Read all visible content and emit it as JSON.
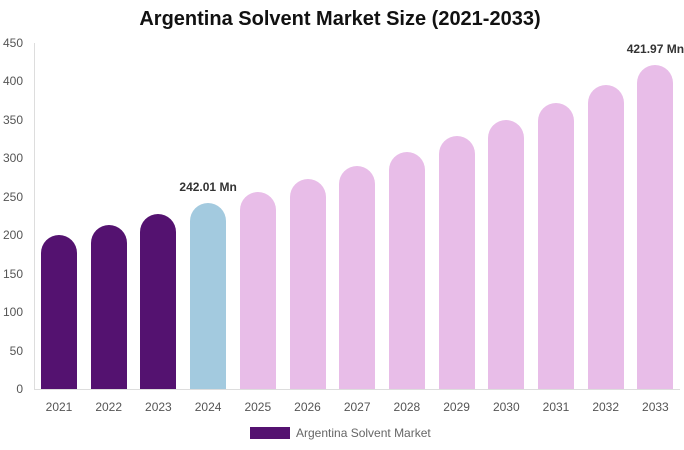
{
  "chart_data": {
    "type": "bar",
    "title": "Argentina Solvent Market Size (2021-2033)",
    "xlabel": "",
    "ylabel": "",
    "ylim": [
      0,
      450
    ],
    "yticks": [
      0,
      50,
      100,
      150,
      200,
      250,
      300,
      350,
      400,
      450
    ],
    "grid": false,
    "legend_position": "bottom",
    "categories": [
      "2021",
      "2022",
      "2023",
      "2024",
      "2025",
      "2026",
      "2027",
      "2028",
      "2029",
      "2030",
      "2031",
      "2032",
      "2033"
    ],
    "series": [
      {
        "name": "Argentina Solvent Market",
        "values": [
          200,
          213,
          227,
          242.01,
          256,
          273,
          290,
          308,
          329,
          350,
          372,
          395,
          421.97
        ]
      }
    ],
    "bar_colors": [
      "#541270",
      "#541270",
      "#541270",
      "#a3cadf",
      "#e8bde8",
      "#e8bde8",
      "#e8bde8",
      "#e8bde8",
      "#e8bde8",
      "#e8bde8",
      "#e8bde8",
      "#e8bde8",
      "#e8bde8"
    ],
    "annotations": [
      {
        "category": "2024",
        "text": "242.01 Mn"
      },
      {
        "category": "2033",
        "text": "421.97 Mn"
      }
    ]
  },
  "legend": {
    "label": "Argentina Solvent Market",
    "color": "#541270"
  }
}
